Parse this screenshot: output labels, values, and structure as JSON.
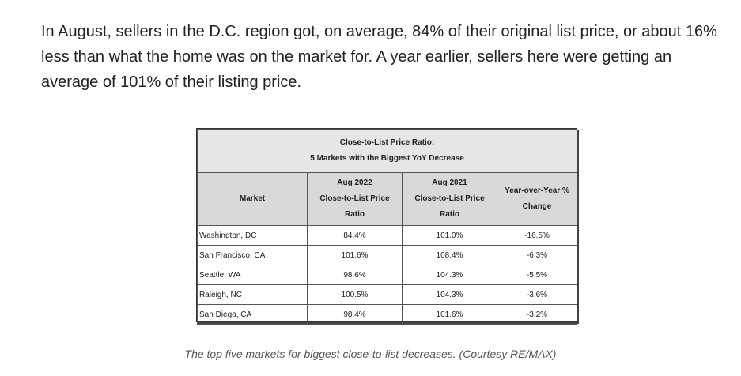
{
  "article": {
    "paragraph": "In August, sellers in the D.C. region got, on average, 84% of their original list price, or about 16% less than what the home was on the market for. A year earlier, sellers here were getting an average of 101% of their listing price."
  },
  "table": {
    "title_line1": "Close-to-List Price Ratio:",
    "title_line2": "5 Markets with the Biggest YoY Decrease",
    "headers": {
      "market": "Market",
      "aug2022": [
        "Aug 2022",
        "Close-to-List Price",
        "Ratio"
      ],
      "aug2021": [
        "Aug 2021",
        "Close-to-List Price",
        "Ratio"
      ],
      "yoy": [
        "Year-over-Year %",
        "Change"
      ]
    },
    "rows": [
      {
        "market": "Washington, DC",
        "aug2022": "84.4%",
        "aug2021": "101.0%",
        "change": "-16.5%"
      },
      {
        "market": "San Francisco, CA",
        "aug2022": "101.6%",
        "aug2021": "108.4%",
        "change": "-6.3%"
      },
      {
        "market": "Seattle, WA",
        "aug2022": "98.6%",
        "aug2021": "104.3%",
        "change": "-5.5%"
      },
      {
        "market": "Raleigh, NC",
        "aug2022": "100.5%",
        "aug2021": "104.3%",
        "change": "-3.6%"
      },
      {
        "market": "San Diego, CA",
        "aug2022": "98.4%",
        "aug2021": "101.6%",
        "change": "-3.2%"
      }
    ]
  },
  "caption": "The top five markets for biggest close-to-list decreases. (Courtesy RE/MAX)"
}
